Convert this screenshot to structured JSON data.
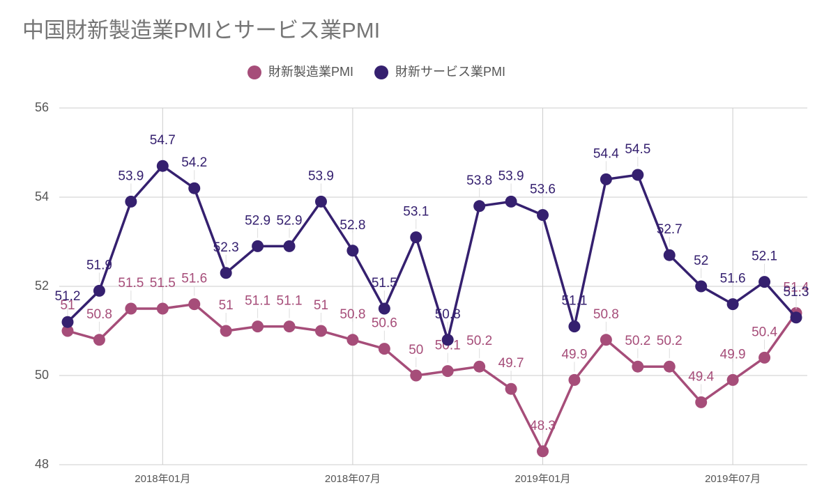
{
  "chart_data": {
    "type": "line",
    "title": "中国財新製造業PMIとサービス業PMI",
    "categories": [
      null,
      null,
      null,
      "2018年01月",
      null,
      null,
      null,
      null,
      null,
      "2018年07月",
      null,
      null,
      null,
      null,
      null,
      "2019年01月",
      null,
      null,
      null,
      null,
      null,
      "2019年07月",
      null,
      null
    ],
    "series": [
      {
        "name": "財新製造業PMI",
        "color": "#a64d79",
        "values": [
          51,
          50.8,
          51.5,
          51.5,
          51.6,
          51,
          51.1,
          51.1,
          51,
          50.8,
          50.6,
          50,
          50.1,
          50.2,
          49.7,
          48.3,
          49.9,
          50.8,
          50.2,
          50.2,
          49.4,
          49.9,
          50.4,
          51.4
        ]
      },
      {
        "name": "財新サービス業PMI",
        "color": "#35206f",
        "values": [
          51.2,
          51.9,
          53.9,
          54.7,
          54.2,
          52.3,
          52.9,
          52.9,
          53.9,
          52.8,
          51.5,
          53.1,
          50.8,
          53.8,
          53.9,
          53.6,
          51.1,
          54.4,
          54.5,
          52.7,
          52,
          51.6,
          52.1,
          51.3
        ]
      }
    ],
    "ylim": [
      48,
      56
    ],
    "yticks": [
      48,
      50,
      52,
      54,
      56
    ],
    "grid": true,
    "legend": "top"
  }
}
